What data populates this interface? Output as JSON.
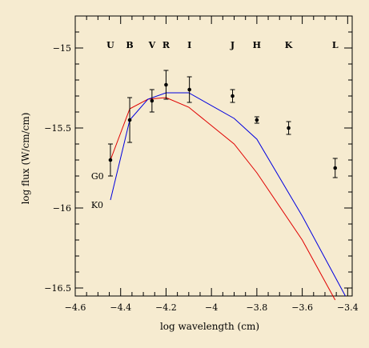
{
  "chart_data": {
    "type": "scatter",
    "xlabel": "log wavelength (cm)",
    "ylabel": "log flux (W/cm/cm)",
    "xlim": [
      -4.6,
      -3.38
    ],
    "ylim": [
      -16.55,
      -14.8
    ],
    "x_ticks": [
      {
        "value": -4.6,
        "label": "-4.6"
      },
      {
        "value": -4.4,
        "label": "-4.4"
      },
      {
        "value": -4.2,
        "label": "-4.2"
      },
      {
        "value": -4.0,
        "label": "-4"
      },
      {
        "value": -3.8,
        "label": "-3.8"
      },
      {
        "value": -3.6,
        "label": "-3.6"
      },
      {
        "value": -3.4,
        "label": "-3.4"
      }
    ],
    "y_ticks": [
      {
        "value": -15.0,
        "label": "-15"
      },
      {
        "value": -15.5,
        "label": "-15.5"
      },
      {
        "value": -16.0,
        "label": "-16"
      },
      {
        "value": -16.5,
        "label": "-16.5"
      }
    ],
    "band_labels": [
      {
        "text": "U",
        "x": -4.445
      },
      {
        "text": "B",
        "x": -4.36
      },
      {
        "text": "V",
        "x": -4.262
      },
      {
        "text": "R",
        "x": -4.2
      },
      {
        "text": "I",
        "x": -4.097
      },
      {
        "text": "J",
        "x": -3.907
      },
      {
        "text": "H",
        "x": -3.8
      },
      {
        "text": "K",
        "x": -3.66
      },
      {
        "text": "L",
        "x": -3.455
      }
    ],
    "observations": [
      {
        "x": -4.445,
        "y": -15.7,
        "err": 0.1
      },
      {
        "x": -4.36,
        "y": -15.45,
        "err": 0.14
      },
      {
        "x": -4.262,
        "y": -15.33,
        "err": 0.07
      },
      {
        "x": -4.2,
        "y": -15.23,
        "err": 0.09
      },
      {
        "x": -4.097,
        "y": -15.26,
        "err": 0.08
      },
      {
        "x": -3.907,
        "y": -15.3,
        "err": 0.04
      },
      {
        "x": -3.8,
        "y": -15.45,
        "err": 0.02
      },
      {
        "x": -3.66,
        "y": -15.5,
        "err": 0.04
      },
      {
        "x": -3.455,
        "y": -15.75,
        "err": 0.06
      }
    ],
    "series": [
      {
        "name": "G0",
        "color": "#e00000",
        "label_at": {
          "x": -4.53,
          "y": -15.8
        },
        "points": [
          [
            -4.445,
            -15.7
          ],
          [
            -4.36,
            -15.38
          ],
          [
            -4.28,
            -15.32
          ],
          [
            -4.2,
            -15.31
          ],
          [
            -4.1,
            -15.37
          ],
          [
            -3.9,
            -15.6
          ],
          [
            -3.8,
            -15.78
          ],
          [
            -3.6,
            -16.2
          ],
          [
            -3.455,
            -16.6
          ]
        ]
      },
      {
        "name": "K0",
        "color": "#0000e0",
        "label_at": {
          "x": -4.53,
          "y": -15.98
        },
        "points": [
          [
            -4.445,
            -15.95
          ],
          [
            -4.36,
            -15.45
          ],
          [
            -4.28,
            -15.32
          ],
          [
            -4.2,
            -15.28
          ],
          [
            -4.1,
            -15.28
          ],
          [
            -3.9,
            -15.44
          ],
          [
            -3.8,
            -15.57
          ],
          [
            -3.6,
            -16.05
          ],
          [
            -3.41,
            -16.55
          ]
        ]
      }
    ]
  }
}
